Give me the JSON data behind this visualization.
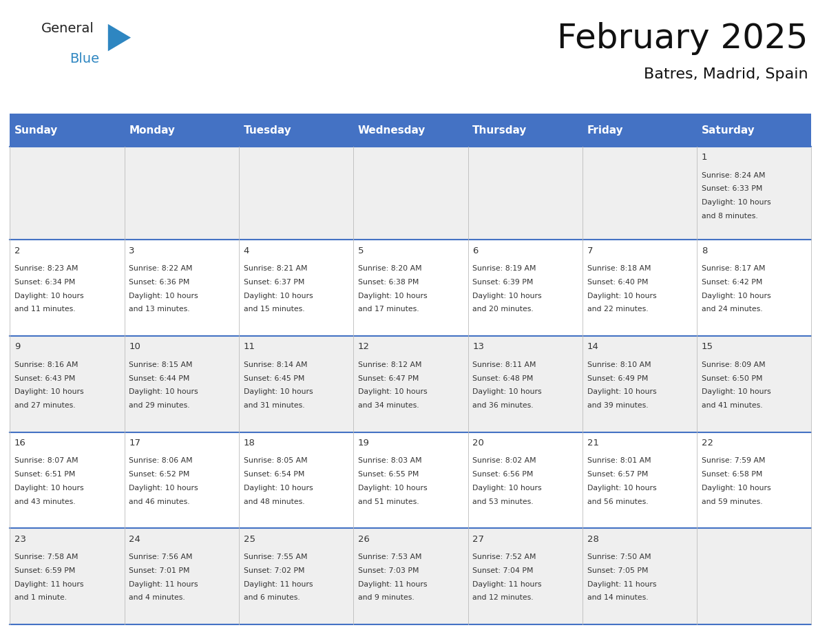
{
  "title": "February 2025",
  "subtitle": "Batres, Madrid, Spain",
  "header_bg": "#4472C4",
  "header_text_color": "#FFFFFF",
  "header_font_size": 11,
  "day_names": [
    "Sunday",
    "Monday",
    "Tuesday",
    "Wednesday",
    "Thursday",
    "Friday",
    "Saturday"
  ],
  "title_font_size": 36,
  "subtitle_font_size": 16,
  "cell_bg_odd": "#EFEFEF",
  "cell_bg_even": "#FFFFFF",
  "cell_text_color": "#333333",
  "line_color": "#4472C4",
  "logo_color1": "#222222",
  "logo_color2": "#2E86C1",
  "days_data": [
    {
      "day": 1,
      "col": 6,
      "row": 0,
      "sunrise": "8:24 AM",
      "sunset": "6:33 PM",
      "daylight_h": "10 hours",
      "daylight_m": "8 minutes."
    },
    {
      "day": 2,
      "col": 0,
      "row": 1,
      "sunrise": "8:23 AM",
      "sunset": "6:34 PM",
      "daylight_h": "10 hours",
      "daylight_m": "11 minutes."
    },
    {
      "day": 3,
      "col": 1,
      "row": 1,
      "sunrise": "8:22 AM",
      "sunset": "6:36 PM",
      "daylight_h": "10 hours",
      "daylight_m": "13 minutes."
    },
    {
      "day": 4,
      "col": 2,
      "row": 1,
      "sunrise": "8:21 AM",
      "sunset": "6:37 PM",
      "daylight_h": "10 hours",
      "daylight_m": "15 minutes."
    },
    {
      "day": 5,
      "col": 3,
      "row": 1,
      "sunrise": "8:20 AM",
      "sunset": "6:38 PM",
      "daylight_h": "10 hours",
      "daylight_m": "17 minutes."
    },
    {
      "day": 6,
      "col": 4,
      "row": 1,
      "sunrise": "8:19 AM",
      "sunset": "6:39 PM",
      "daylight_h": "10 hours",
      "daylight_m": "20 minutes."
    },
    {
      "day": 7,
      "col": 5,
      "row": 1,
      "sunrise": "8:18 AM",
      "sunset": "6:40 PM",
      "daylight_h": "10 hours",
      "daylight_m": "22 minutes."
    },
    {
      "day": 8,
      "col": 6,
      "row": 1,
      "sunrise": "8:17 AM",
      "sunset": "6:42 PM",
      "daylight_h": "10 hours",
      "daylight_m": "24 minutes."
    },
    {
      "day": 9,
      "col": 0,
      "row": 2,
      "sunrise": "8:16 AM",
      "sunset": "6:43 PM",
      "daylight_h": "10 hours",
      "daylight_m": "27 minutes."
    },
    {
      "day": 10,
      "col": 1,
      "row": 2,
      "sunrise": "8:15 AM",
      "sunset": "6:44 PM",
      "daylight_h": "10 hours",
      "daylight_m": "29 minutes."
    },
    {
      "day": 11,
      "col": 2,
      "row": 2,
      "sunrise": "8:14 AM",
      "sunset": "6:45 PM",
      "daylight_h": "10 hours",
      "daylight_m": "31 minutes."
    },
    {
      "day": 12,
      "col": 3,
      "row": 2,
      "sunrise": "8:12 AM",
      "sunset": "6:47 PM",
      "daylight_h": "10 hours",
      "daylight_m": "34 minutes."
    },
    {
      "day": 13,
      "col": 4,
      "row": 2,
      "sunrise": "8:11 AM",
      "sunset": "6:48 PM",
      "daylight_h": "10 hours",
      "daylight_m": "36 minutes."
    },
    {
      "day": 14,
      "col": 5,
      "row": 2,
      "sunrise": "8:10 AM",
      "sunset": "6:49 PM",
      "daylight_h": "10 hours",
      "daylight_m": "39 minutes."
    },
    {
      "day": 15,
      "col": 6,
      "row": 2,
      "sunrise": "8:09 AM",
      "sunset": "6:50 PM",
      "daylight_h": "10 hours",
      "daylight_m": "41 minutes."
    },
    {
      "day": 16,
      "col": 0,
      "row": 3,
      "sunrise": "8:07 AM",
      "sunset": "6:51 PM",
      "daylight_h": "10 hours",
      "daylight_m": "43 minutes."
    },
    {
      "day": 17,
      "col": 1,
      "row": 3,
      "sunrise": "8:06 AM",
      "sunset": "6:52 PM",
      "daylight_h": "10 hours",
      "daylight_m": "46 minutes."
    },
    {
      "day": 18,
      "col": 2,
      "row": 3,
      "sunrise": "8:05 AM",
      "sunset": "6:54 PM",
      "daylight_h": "10 hours",
      "daylight_m": "48 minutes."
    },
    {
      "day": 19,
      "col": 3,
      "row": 3,
      "sunrise": "8:03 AM",
      "sunset": "6:55 PM",
      "daylight_h": "10 hours",
      "daylight_m": "51 minutes."
    },
    {
      "day": 20,
      "col": 4,
      "row": 3,
      "sunrise": "8:02 AM",
      "sunset": "6:56 PM",
      "daylight_h": "10 hours",
      "daylight_m": "53 minutes."
    },
    {
      "day": 21,
      "col": 5,
      "row": 3,
      "sunrise": "8:01 AM",
      "sunset": "6:57 PM",
      "daylight_h": "10 hours",
      "daylight_m": "56 minutes."
    },
    {
      "day": 22,
      "col": 6,
      "row": 3,
      "sunrise": "7:59 AM",
      "sunset": "6:58 PM",
      "daylight_h": "10 hours",
      "daylight_m": "59 minutes."
    },
    {
      "day": 23,
      "col": 0,
      "row": 4,
      "sunrise": "7:58 AM",
      "sunset": "6:59 PM",
      "daylight_h": "11 hours",
      "daylight_m": "1 minute."
    },
    {
      "day": 24,
      "col": 1,
      "row": 4,
      "sunrise": "7:56 AM",
      "sunset": "7:01 PM",
      "daylight_h": "11 hours",
      "daylight_m": "4 minutes."
    },
    {
      "day": 25,
      "col": 2,
      "row": 4,
      "sunrise": "7:55 AM",
      "sunset": "7:02 PM",
      "daylight_h": "11 hours",
      "daylight_m": "6 minutes."
    },
    {
      "day": 26,
      "col": 3,
      "row": 4,
      "sunrise": "7:53 AM",
      "sunset": "7:03 PM",
      "daylight_h": "11 hours",
      "daylight_m": "9 minutes."
    },
    {
      "day": 27,
      "col": 4,
      "row": 4,
      "sunrise": "7:52 AM",
      "sunset": "7:04 PM",
      "daylight_h": "11 hours",
      "daylight_m": "12 minutes."
    },
    {
      "day": 28,
      "col": 5,
      "row": 4,
      "sunrise": "7:50 AM",
      "sunset": "7:05 PM",
      "daylight_h": "11 hours",
      "daylight_m": "14 minutes."
    }
  ]
}
